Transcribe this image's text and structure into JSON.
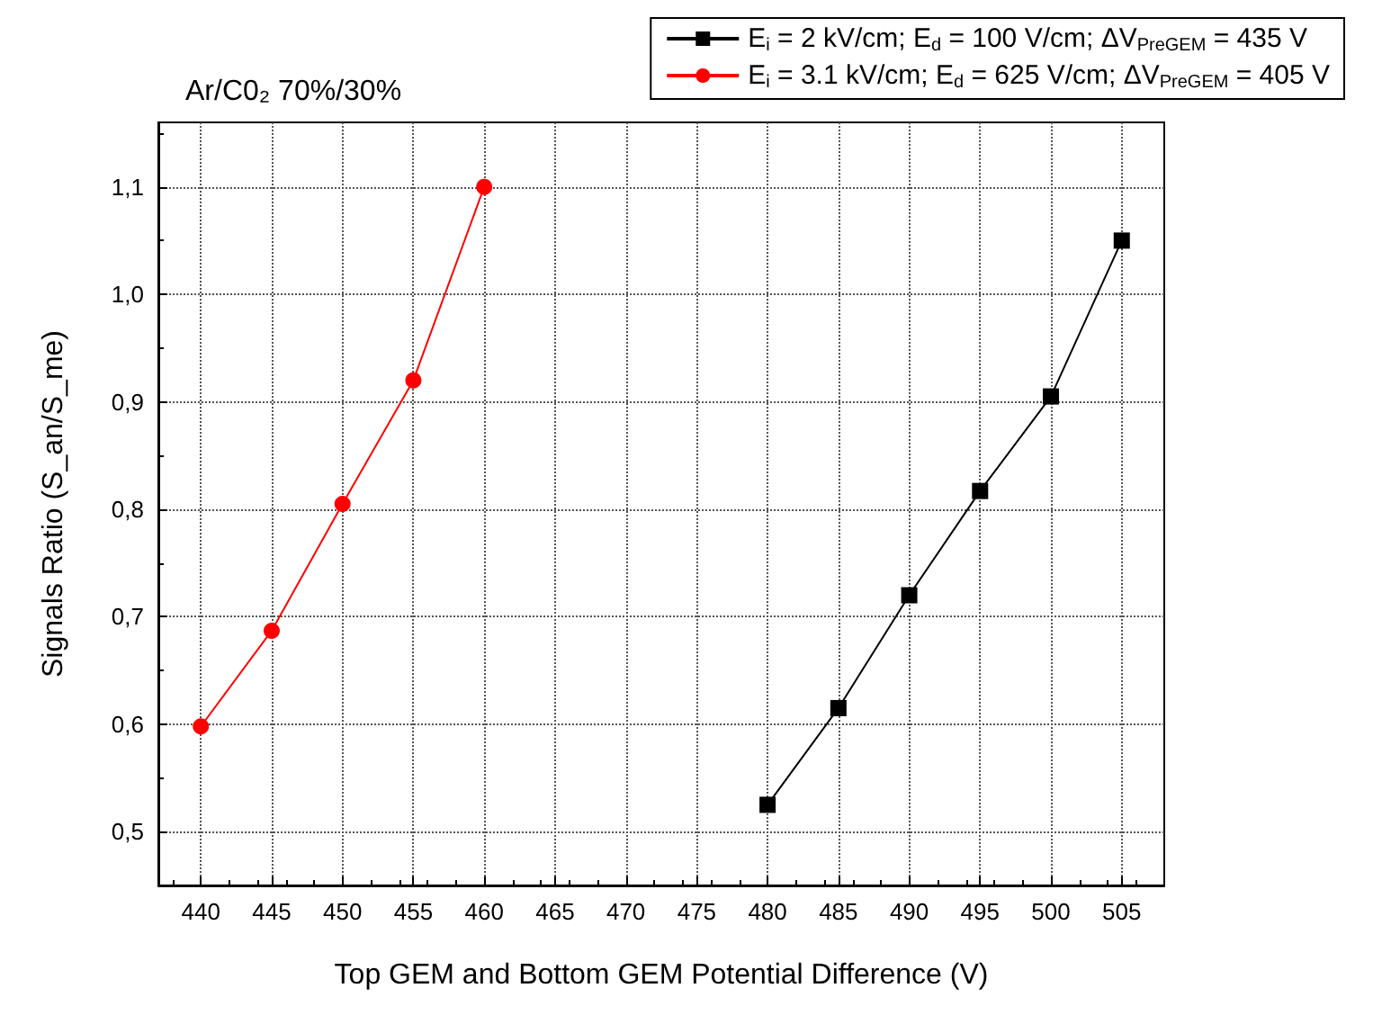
{
  "chart_data": {
    "type": "line",
    "title": "Ar/C0₂ 70%/30%",
    "xlabel": "Top GEM and Bottom GEM Potential Difference (V)",
    "ylabel": "Signals Ratio (S_an/S_me)",
    "series": [
      {
        "name": "E$_{i}$ = 2 kV/cm; E$_{d}$ = 100 V/cm; ΔV$_{PreGEM}$ = 435 V",
        "color": "#000000",
        "marker": "square",
        "x": [
          480,
          485,
          490,
          495,
          500,
          505
        ],
        "values": [
          0.525,
          0.615,
          0.72,
          0.817,
          0.905,
          1.05
        ]
      },
      {
        "name": "E$_{i}$ = 3.1 kV/cm; E$_{d}$ = 625 V/cm; ΔV$_{PreGEM}$ = 405 V",
        "color": "#ff0000",
        "marker": "circle",
        "x": [
          440,
          445,
          450,
          455,
          460
        ],
        "values": [
          0.598,
          0.687,
          0.805,
          0.92,
          1.1
        ]
      }
    ],
    "xlim": [
      437,
      508
    ],
    "xticks": [
      440,
      445,
      450,
      455,
      460,
      465,
      470,
      475,
      480,
      485,
      490,
      495,
      500,
      505
    ],
    "ylim": [
      0.45,
      1.16
    ],
    "yticks": [
      {
        "value": 0.5,
        "label": "0,5"
      },
      {
        "value": 0.6,
        "label": "0,6"
      },
      {
        "value": 0.7,
        "label": "0,7"
      },
      {
        "value": 0.8,
        "label": "0,8"
      },
      {
        "value": 0.9,
        "label": "0,9"
      },
      {
        "value": 1.0,
        "label": "1,0"
      },
      {
        "value": 1.1,
        "label": "1,1"
      }
    ],
    "grid": true,
    "legend": "top right",
    "line_style": "solid"
  }
}
